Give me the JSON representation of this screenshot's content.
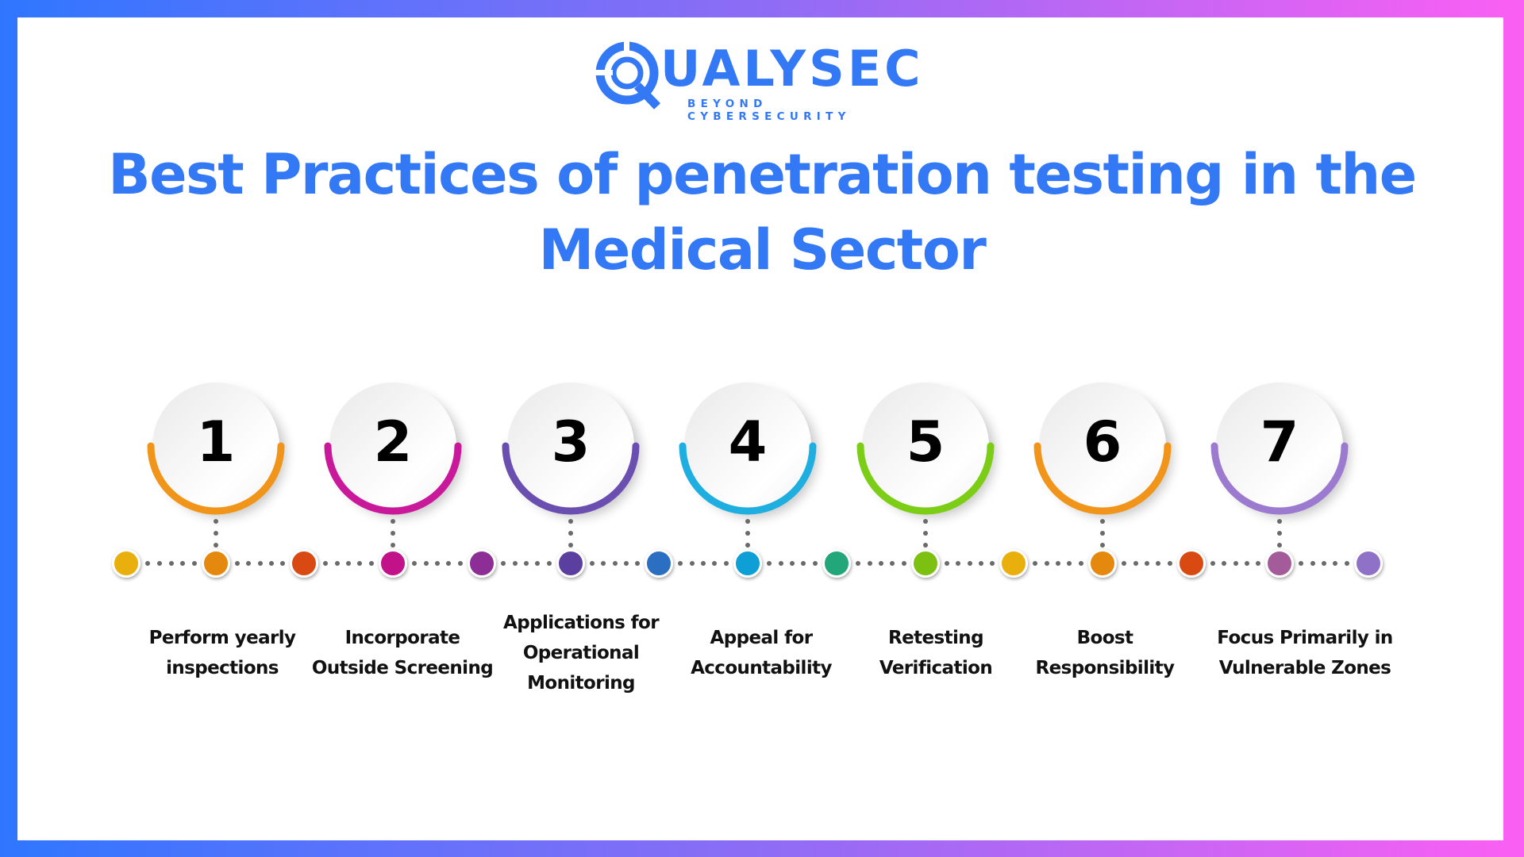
{
  "brand": {
    "name": "QUALYSEC",
    "name_rest": "UALYSEC",
    "tagline": "BEYOND CYBERSECURITY",
    "color": "#3378f5"
  },
  "title": {
    "line1": "Best Practices of penetration testing in the",
    "line2": "Medical Sector",
    "color": "#3378f5"
  },
  "frame": {
    "gradient_colors": [
      "#2f76ff",
      "#8e6cf5",
      "#fb5ff3"
    ]
  },
  "steps": [
    {
      "number": "1",
      "label_lines": [
        "Perform yearly",
        "inspections"
      ],
      "arc_color": "#f0951a"
    },
    {
      "number": "2",
      "label_lines": [
        "Incorporate",
        "Outside Screening"
      ],
      "arc_color": "#c9189a"
    },
    {
      "number": "3",
      "label_lines": [
        "Applications for",
        "Operational",
        "Monitoring"
      ],
      "arc_color": "#6a4fb0"
    },
    {
      "number": "4",
      "label_lines": [
        "Appeal for",
        "Accountability"
      ],
      "arc_color": "#1eaee0"
    },
    {
      "number": "5",
      "label_lines": [
        "Retesting",
        "Verification"
      ],
      "arc_color": "#7ccd16"
    },
    {
      "number": "6",
      "label_lines": [
        "Boost",
        "Responsibility"
      ],
      "arc_color": "#f0951a"
    },
    {
      "number": "7",
      "label_lines": [
        "Focus Primarily in",
        "Vulnerable Zones"
      ],
      "arc_color": "#9b7ad0"
    }
  ],
  "timeline_dots": [
    {
      "color": "#e9af0c"
    },
    {
      "color": "#e5880e"
    },
    {
      "color": "#d84a12"
    },
    {
      "color": "#c2128a"
    },
    {
      "color": "#8c2e95"
    },
    {
      "color": "#5b3fa0"
    },
    {
      "color": "#2b6fc3"
    },
    {
      "color": "#0e9fd6"
    },
    {
      "color": "#22a67a"
    },
    {
      "color": "#7cc012"
    },
    {
      "color": "#e9af0c"
    },
    {
      "color": "#e5880e"
    },
    {
      "color": "#d84a12"
    },
    {
      "color": "#a45b9a"
    },
    {
      "color": "#8f72c8"
    }
  ]
}
